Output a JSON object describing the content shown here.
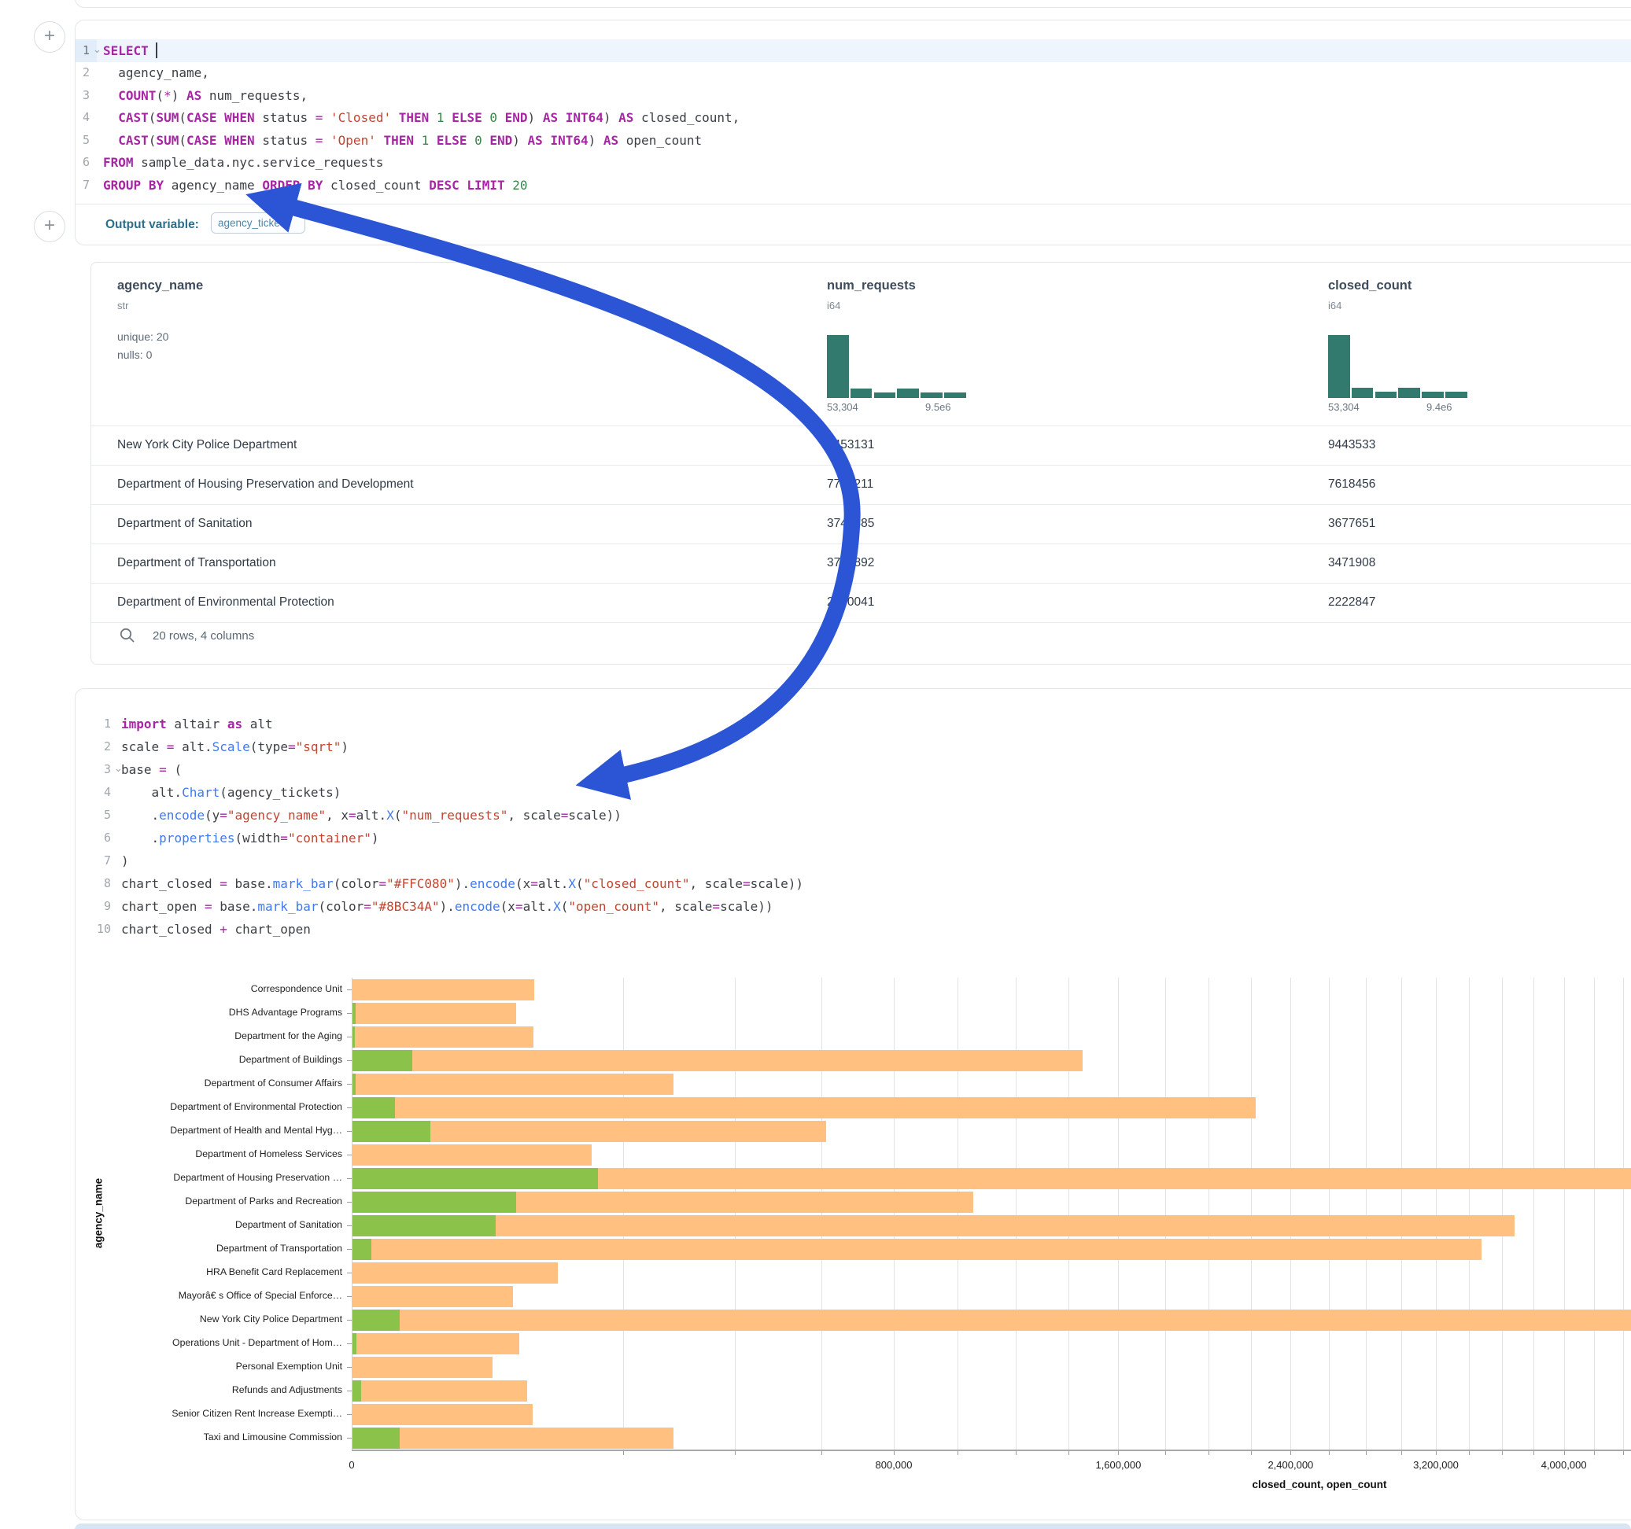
{
  "colors": {
    "closed_bar": "#FFC080",
    "open_bar": "#8BC34A",
    "histogram": "#327A6E",
    "arrow": "#2B55D5",
    "accent_blue": "#4078F2"
  },
  "sql_cell": {
    "lines": [
      {
        "n": "1",
        "chv": true,
        "active": true,
        "cursor_after": "SELECT ",
        "tokens": [
          [
            "kw",
            "SELECT"
          ],
          [
            "id",
            " "
          ]
        ]
      },
      {
        "n": "2",
        "tokens": [
          [
            "id",
            "  agency_name,"
          ]
        ]
      },
      {
        "n": "3",
        "tokens": [
          [
            "id",
            "  "
          ],
          [
            "kw",
            "COUNT"
          ],
          [
            "id",
            "("
          ],
          [
            "op",
            "*"
          ],
          [
            "id",
            ") "
          ],
          [
            "kw",
            "AS"
          ],
          [
            "id",
            " num_requests,"
          ]
        ]
      },
      {
        "n": "4",
        "tokens": [
          [
            "id",
            "  "
          ],
          [
            "kw",
            "CAST"
          ],
          [
            "id",
            "("
          ],
          [
            "kw",
            "SUM"
          ],
          [
            "id",
            "("
          ],
          [
            "kw",
            "CASE"
          ],
          [
            "id",
            " "
          ],
          [
            "kw",
            "WHEN"
          ],
          [
            "id",
            " status "
          ],
          [
            "op",
            "="
          ],
          [
            "id",
            " "
          ],
          [
            "str",
            "'Closed'"
          ],
          [
            "id",
            " "
          ],
          [
            "kw",
            "THEN"
          ],
          [
            "id",
            " "
          ],
          [
            "num",
            "1"
          ],
          [
            "id",
            " "
          ],
          [
            "kw",
            "ELSE"
          ],
          [
            "id",
            " "
          ],
          [
            "num",
            "0"
          ],
          [
            "id",
            " "
          ],
          [
            "kw",
            "END"
          ],
          [
            "id",
            ") "
          ],
          [
            "kw",
            "AS"
          ],
          [
            "id",
            " "
          ],
          [
            "kw",
            "INT64"
          ],
          [
            "id",
            ") "
          ],
          [
            "kw",
            "AS"
          ],
          [
            "id",
            " closed_count,"
          ]
        ]
      },
      {
        "n": "5",
        "tokens": [
          [
            "id",
            "  "
          ],
          [
            "kw",
            "CAST"
          ],
          [
            "id",
            "("
          ],
          [
            "kw",
            "SUM"
          ],
          [
            "id",
            "("
          ],
          [
            "kw",
            "CASE"
          ],
          [
            "id",
            " "
          ],
          [
            "kw",
            "WHEN"
          ],
          [
            "id",
            " status "
          ],
          [
            "op",
            "="
          ],
          [
            "id",
            " "
          ],
          [
            "str",
            "'Open'"
          ],
          [
            "id",
            " "
          ],
          [
            "kw",
            "THEN"
          ],
          [
            "id",
            " "
          ],
          [
            "num",
            "1"
          ],
          [
            "id",
            " "
          ],
          [
            "kw",
            "ELSE"
          ],
          [
            "id",
            " "
          ],
          [
            "num",
            "0"
          ],
          [
            "id",
            " "
          ],
          [
            "kw",
            "END"
          ],
          [
            "id",
            ") "
          ],
          [
            "kw",
            "AS"
          ],
          [
            "id",
            " "
          ],
          [
            "kw",
            "INT64"
          ],
          [
            "id",
            ") "
          ],
          [
            "kw",
            "AS"
          ],
          [
            "id",
            " open_count"
          ]
        ]
      },
      {
        "n": "6",
        "tokens": [
          [
            "kw",
            "FROM"
          ],
          [
            "id",
            " sample_data.nyc.service_requests"
          ]
        ]
      },
      {
        "n": "7",
        "tokens": [
          [
            "kw",
            "GROUP"
          ],
          [
            "id",
            " "
          ],
          [
            "kw",
            "BY"
          ],
          [
            "id",
            " agency_name "
          ],
          [
            "kw",
            "ORDER"
          ],
          [
            "id",
            " "
          ],
          [
            "kw",
            "BY"
          ],
          [
            "id",
            " closed_count "
          ],
          [
            "kw",
            "DESC"
          ],
          [
            "id",
            " "
          ],
          [
            "kw",
            "LIMIT"
          ],
          [
            "id",
            " "
          ],
          [
            "num",
            "20"
          ]
        ]
      }
    ]
  },
  "output_variable": {
    "label": "Output variable:",
    "value": "agency_tickets"
  },
  "table": {
    "columns": [
      {
        "name": "agency_name",
        "type": "str",
        "stats": [
          "unique: 20",
          "nulls: 0"
        ]
      },
      {
        "name": "num_requests",
        "type": "i64",
        "hist": {
          "rel": [
            1,
            0.15,
            0.09,
            0.15,
            0.09,
            0.09
          ],
          "min_label": "53,304",
          "max_label": "9.5e6"
        }
      },
      {
        "name": "closed_count",
        "type": "i64",
        "hist": {
          "rel": [
            1,
            0.16,
            0.1,
            0.16,
            0.1,
            0.1
          ],
          "min_label": "53,304",
          "max_label": "9.4e6"
        }
      }
    ],
    "rows": [
      [
        "New York City Police Department",
        "9453131",
        "9443533"
      ],
      [
        "Department of Housing Preservation and Development",
        "7782211",
        "7618456"
      ],
      [
        "Department of Sanitation",
        "3749485",
        "3677651"
      ],
      [
        "Department of Transportation",
        "3774892",
        "3471908"
      ],
      [
        "Department of Environmental Protection",
        "2240041",
        "2222847"
      ]
    ],
    "footer": "20 rows, 4 columns"
  },
  "python_cell": {
    "lines": [
      {
        "n": "1",
        "tokens": [
          [
            "kw",
            "import"
          ],
          [
            "id",
            " altair "
          ],
          [
            "kw",
            "as"
          ],
          [
            "id",
            " alt"
          ]
        ]
      },
      {
        "n": "2",
        "tokens": [
          [
            "id",
            "scale "
          ],
          [
            "op",
            "="
          ],
          [
            "id",
            " alt."
          ],
          [
            "fn",
            "Scale"
          ],
          [
            "id",
            "(type"
          ],
          [
            "op",
            "="
          ],
          [
            "str",
            "\"sqrt\""
          ],
          [
            "id",
            ")"
          ]
        ]
      },
      {
        "n": "3",
        "chv": true,
        "tokens": [
          [
            "id",
            "base "
          ],
          [
            "op",
            "="
          ],
          [
            "id",
            " ("
          ]
        ]
      },
      {
        "n": "4",
        "tokens": [
          [
            "id",
            "    alt."
          ],
          [
            "fn",
            "Chart"
          ],
          [
            "id",
            "(agency_tickets)"
          ]
        ]
      },
      {
        "n": "5",
        "tokens": [
          [
            "id",
            "    ."
          ],
          [
            "fn",
            "encode"
          ],
          [
            "id",
            "(y"
          ],
          [
            "op",
            "="
          ],
          [
            "str",
            "\"agency_name\""
          ],
          [
            "id",
            ", x"
          ],
          [
            "op",
            "="
          ],
          [
            "id",
            "alt."
          ],
          [
            "fn",
            "X"
          ],
          [
            "id",
            "("
          ],
          [
            "str",
            "\"num_requests\""
          ],
          [
            "id",
            ", scale"
          ],
          [
            "op",
            "="
          ],
          [
            "id",
            "scale))"
          ]
        ]
      },
      {
        "n": "6",
        "tokens": [
          [
            "id",
            "    ."
          ],
          [
            "fn",
            "properties"
          ],
          [
            "id",
            "(width"
          ],
          [
            "op",
            "="
          ],
          [
            "str",
            "\"container\""
          ],
          [
            "id",
            ")"
          ]
        ]
      },
      {
        "n": "7",
        "tokens": [
          [
            "id",
            ")"
          ]
        ]
      },
      {
        "n": "8",
        "tokens": [
          [
            "id",
            "chart_closed "
          ],
          [
            "op",
            "="
          ],
          [
            "id",
            " base."
          ],
          [
            "fn",
            "mark_bar"
          ],
          [
            "id",
            "(color"
          ],
          [
            "op",
            "="
          ],
          [
            "str",
            "\"#FFC080\""
          ],
          [
            "id",
            ")."
          ],
          [
            "fn",
            "encode"
          ],
          [
            "id",
            "(x"
          ],
          [
            "op",
            "="
          ],
          [
            "id",
            "alt."
          ],
          [
            "fn",
            "X"
          ],
          [
            "id",
            "("
          ],
          [
            "str",
            "\"closed_count\""
          ],
          [
            "id",
            ", scale"
          ],
          [
            "op",
            "="
          ],
          [
            "id",
            "scale))"
          ]
        ]
      },
      {
        "n": "9",
        "tokens": [
          [
            "id",
            "chart_open "
          ],
          [
            "op",
            "="
          ],
          [
            "id",
            " base."
          ],
          [
            "fn",
            "mark_bar"
          ],
          [
            "id",
            "(color"
          ],
          [
            "op",
            "="
          ],
          [
            "str",
            "\"#8BC34A\""
          ],
          [
            "id",
            ")."
          ],
          [
            "fn",
            "encode"
          ],
          [
            "id",
            "(x"
          ],
          [
            "op",
            "="
          ],
          [
            "id",
            "alt."
          ],
          [
            "fn",
            "X"
          ],
          [
            "id",
            "("
          ],
          [
            "str",
            "\"open_count\""
          ],
          [
            "id",
            ", scale"
          ],
          [
            "op",
            "="
          ],
          [
            "id",
            "scale))"
          ]
        ]
      },
      {
        "n": "10",
        "tokens": [
          [
            "id",
            "chart_closed "
          ],
          [
            "op",
            "+"
          ],
          [
            "id",
            " chart_open"
          ]
        ]
      }
    ]
  },
  "chart_data": {
    "type": "bar",
    "orientation": "horizontal",
    "x_scale": "sqrt",
    "x_domain": [
      0,
      10000000
    ],
    "xlabel": "closed_count, open_count",
    "ylabel": "agency_name",
    "gridline_step": 200000,
    "x_ticks": [
      {
        "v": 0,
        "label": "0"
      },
      {
        "v": 800000,
        "label": "800,000"
      },
      {
        "v": 1600000,
        "label": "1,600,000"
      },
      {
        "v": 2400000,
        "label": "2,400,000"
      },
      {
        "v": 3200000,
        "label": "3,200,000"
      },
      {
        "v": 4000000,
        "label": "4,000,000"
      }
    ],
    "categories": [
      "Correspondence Unit",
      "DHS Advantage Programs",
      "Department for the Aging",
      "Department of Buildings",
      "Department of Consumer Affairs",
      "Department of Environmental Protection",
      "Department of Health and Mental Hyg…",
      "Department of Homeless Services",
      "Department of Housing Preservation …",
      "Department of Parks and Recreation",
      "Department of Sanitation",
      "Department of Transportation",
      "HRA Benefit Card Replacement",
      "Mayorâ€ s Office of Special Enforce…",
      "New York City Police Department",
      "Operations Unit - Department of Hom…",
      "Personal Exemption Unit",
      "Refunds and Adjustments",
      "Senior Citizen Rent Increase Exempti…",
      "Taxi and Limousine Commission"
    ],
    "series": [
      {
        "name": "closed_count",
        "color": "#FFC080",
        "values": [
          90000,
          73000,
          89000,
          1450000,
          280000,
          2222847,
          610000,
          156000,
          7618456,
          1050000,
          3677651,
          3471908,
          115000,
          70000,
          9443533,
          76000,
          53304,
          83000,
          88000,
          280000
        ]
      },
      {
        "name": "open_count",
        "color": "#8BC34A",
        "values": [
          0,
          30,
          15,
          9700,
          25,
          5000,
          16500,
          0,
          164000,
          73000,
          56000,
          1000,
          0,
          0,
          6000,
          40,
          0,
          200,
          0,
          6000
        ]
      }
    ]
  }
}
